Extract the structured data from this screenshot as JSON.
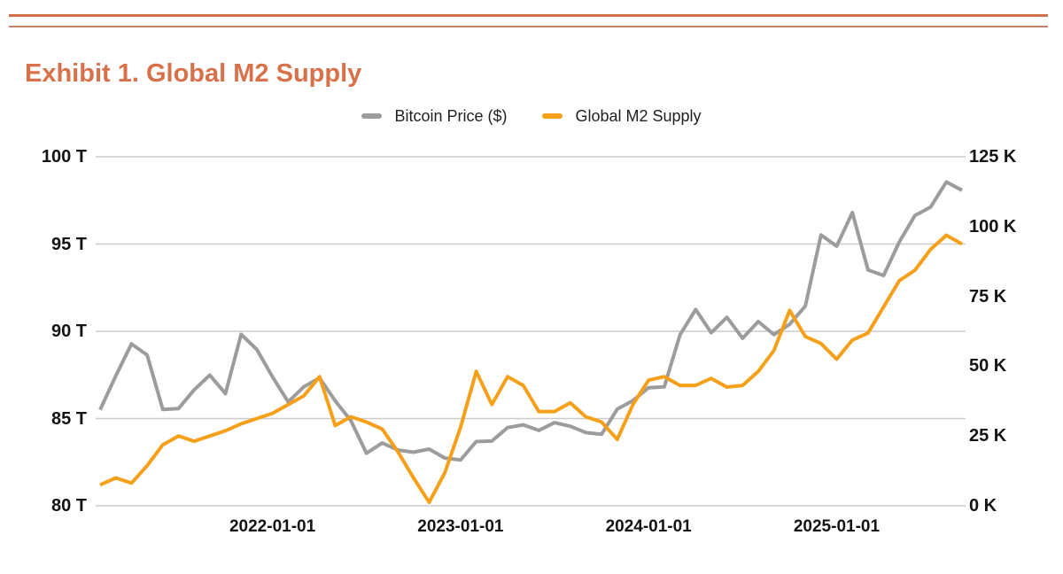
{
  "page": {
    "title": "Exhibit 1. Global M2 Supply"
  },
  "header": {
    "rule_color_top": "#d0714b",
    "rule_color_bottom": "#c47f66",
    "title_color": "#d8714a"
  },
  "legend": [
    {
      "label": "Bitcoin Price ($)",
      "color": "#9c9c9c"
    },
    {
      "label": "Global M2 Supply",
      "color": "#f6a019"
    }
  ],
  "chart_data": {
    "type": "line",
    "title": "Exhibit 1. Global M2 Supply",
    "grid": "horizontal",
    "legend_position": "top-center",
    "gridline_color": "#cbcbcb",
    "x": [
      "2021-01",
      "2021-02",
      "2021-03",
      "2021-04",
      "2021-05",
      "2021-06",
      "2021-07",
      "2021-08",
      "2021-09",
      "2021-10",
      "2021-11",
      "2021-12",
      "2022-01",
      "2022-02",
      "2022-03",
      "2022-04",
      "2022-05",
      "2022-06",
      "2022-07",
      "2022-08",
      "2022-09",
      "2022-10",
      "2022-11",
      "2022-12",
      "2023-01",
      "2023-02",
      "2023-03",
      "2023-04",
      "2023-05",
      "2023-06",
      "2023-07",
      "2023-08",
      "2023-09",
      "2023-10",
      "2023-11",
      "2023-12",
      "2024-01",
      "2024-02",
      "2024-03",
      "2024-04",
      "2024-05",
      "2024-06",
      "2024-07",
      "2024-08",
      "2024-09",
      "2024-10",
      "2024-11",
      "2024-12",
      "2025-01",
      "2025-02",
      "2025-03",
      "2025-04",
      "2025-05",
      "2025-06",
      "2025-07",
      "2025-08"
    ],
    "x_tick_labels": [
      "2022-01-01",
      "2023-01-01",
      "2024-01-01",
      "2025-01-01"
    ],
    "x_tick_indices": [
      11,
      23,
      35,
      47
    ],
    "y_left": {
      "unit": "trillion USD",
      "min": 80,
      "max": 100,
      "ticks": [
        "100 T",
        "95 T",
        "90 T",
        "85 T",
        "80 T"
      ],
      "tick_values": [
        100,
        95,
        90,
        85,
        80
      ]
    },
    "y_right": {
      "unit": "thousand USD",
      "min": 0,
      "max": 125,
      "ticks": [
        "125 K",
        "100 K",
        "75 K",
        "50 K",
        "25 K",
        "0 K"
      ],
      "tick_values": [
        125,
        100,
        75,
        50,
        25,
        0
      ]
    },
    "series": [
      {
        "name": "Bitcoin Price ($)",
        "axis": "right",
        "color": "#9c9c9c",
        "values": [
          34.4,
          46.5,
          58.0,
          54.0,
          34.5,
          34.8,
          41.5,
          46.8,
          40.2,
          61.4,
          56.0,
          46.2,
          37.2,
          42.6,
          45.8,
          37.6,
          30.5,
          18.8,
          22.5,
          20.0,
          19.2,
          20.3,
          17.1,
          16.4,
          23.0,
          23.2,
          28.0,
          29.0,
          27.0,
          29.8,
          28.5,
          26.2,
          25.6,
          34.6,
          37.7,
          42.3,
          42.6,
          61.2,
          70.3,
          62.0,
          67.5,
          60.0,
          66.0,
          61.3,
          65.0,
          71.5,
          97.0,
          93.0,
          105.0,
          84.5,
          82.5,
          94.5,
          104.0,
          107.0,
          116.0,
          113.0
        ]
      },
      {
        "name": "Global M2 Supply",
        "axis": "left",
        "color": "#f6a019",
        "values": [
          81.2,
          81.6,
          81.3,
          82.3,
          83.5,
          84.0,
          83.7,
          84.0,
          84.3,
          84.7,
          85.0,
          85.3,
          85.8,
          86.3,
          87.4,
          84.6,
          85.1,
          84.8,
          84.4,
          83.1,
          81.6,
          80.2,
          81.9,
          84.5,
          87.7,
          85.8,
          87.4,
          86.9,
          85.4,
          85.4,
          85.9,
          85.1,
          84.8,
          83.8,
          85.8,
          87.2,
          87.4,
          86.9,
          86.9,
          87.3,
          86.8,
          86.9,
          87.7,
          88.9,
          91.2,
          89.7,
          89.3,
          88.4,
          89.5,
          89.9,
          91.4,
          92.9,
          93.5,
          94.7,
          95.5,
          95.0
        ]
      }
    ]
  }
}
